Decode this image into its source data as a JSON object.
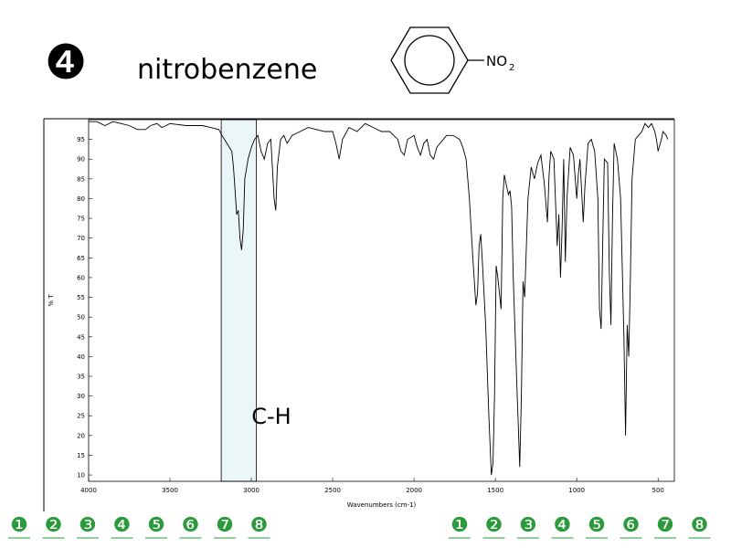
{
  "slide_number": "❹",
  "title": "nitrobenzene",
  "formula": {
    "text": "NO",
    "subscript": "2"
  },
  "chart_data": {
    "type": "line",
    "y_label": "% T",
    "x_label": "Wavenumbers (cm-1)",
    "xlim": [
      4000,
      400
    ],
    "ylim": [
      8.4,
      100
    ],
    "xticks": [
      4000,
      3500,
      3000,
      2500,
      2000,
      1500,
      1000,
      500
    ],
    "yticks": [
      10,
      15,
      20,
      25,
      30,
      35,
      40,
      45,
      50,
      55,
      60,
      65,
      70,
      75,
      80,
      85,
      90,
      95
    ],
    "color": "#000000",
    "highlight": {
      "xrange": [
        3185,
        2970
      ],
      "label": "C-H",
      "color": "#eaf6f8"
    },
    "x": [
      4000,
      3950,
      3900,
      3850,
      3800,
      3750,
      3700,
      3650,
      3620,
      3580,
      3550,
      3500,
      3400,
      3300,
      3250,
      3200,
      3180,
      3150,
      3120,
      3110,
      3100,
      3090,
      3080,
      3070,
      3060,
      3050,
      3040,
      3020,
      3000,
      2980,
      2960,
      2940,
      2920,
      2900,
      2880,
      2860,
      2850,
      2840,
      2820,
      2800,
      2780,
      2750,
      2700,
      2650,
      2600,
      2550,
      2500,
      2480,
      2460,
      2440,
      2400,
      2350,
      2300,
      2250,
      2200,
      2150,
      2100,
      2080,
      2060,
      2040,
      2000,
      1980,
      1960,
      1940,
      1920,
      1900,
      1880,
      1860,
      1840,
      1820,
      1800,
      1760,
      1720,
      1700,
      1680,
      1660,
      1640,
      1620,
      1610,
      1600,
      1590,
      1580,
      1560,
      1540,
      1525,
      1515,
      1505,
      1495,
      1485,
      1475,
      1465,
      1455,
      1445,
      1435,
      1420,
      1410,
      1400,
      1390,
      1370,
      1350,
      1340,
      1330,
      1320,
      1300,
      1280,
      1260,
      1240,
      1220,
      1200,
      1180,
      1170,
      1160,
      1140,
      1120,
      1110,
      1100,
      1090,
      1080,
      1070,
      1060,
      1040,
      1020,
      1000,
      990,
      980,
      960,
      950,
      930,
      910,
      890,
      870,
      860,
      850,
      840,
      830,
      810,
      800,
      790,
      780,
      770,
      750,
      730,
      710,
      700,
      690,
      680,
      670,
      660,
      640,
      620,
      600,
      580,
      560,
      540,
      520,
      510,
      500,
      480,
      470,
      450,
      440
    ],
    "values": [
      99.5,
      99.5,
      98.5,
      99.5,
      99,
      98.5,
      97.5,
      97.5,
      98.5,
      99,
      98,
      99,
      98.5,
      98.5,
      98,
      97.5,
      96,
      94,
      92,
      88,
      82,
      76,
      77,
      70,
      67,
      72,
      85,
      90,
      93,
      95,
      96,
      92,
      90,
      94,
      95,
      80,
      77,
      88,
      95,
      96,
      94,
      96,
      97,
      98,
      97.5,
      97,
      97,
      94,
      90,
      95,
      98,
      97,
      99,
      98,
      97,
      97,
      95,
      92,
      91,
      95,
      96,
      93,
      91,
      94,
      95,
      91,
      90,
      93,
      94,
      95,
      96,
      96,
      95,
      93,
      90,
      80,
      66,
      53,
      56,
      68,
      71,
      64,
      48,
      25,
      10,
      13,
      30,
      63,
      60,
      56,
      52,
      80,
      86,
      84,
      81,
      82,
      78,
      60,
      35,
      12,
      30,
      59,
      55,
      80,
      88,
      85,
      89,
      91,
      84,
      74,
      86,
      92,
      90,
      68,
      76,
      60,
      72,
      90,
      64,
      80,
      93,
      91,
      80,
      86,
      90,
      74,
      83,
      94,
      95,
      92,
      80,
      52,
      47,
      70,
      90,
      89,
      62,
      48,
      75,
      94,
      90,
      80,
      45,
      20,
      48,
      40,
      60,
      85,
      95,
      96,
      97,
      99,
      98,
      99,
      97,
      95,
      92,
      95,
      97,
      96,
      95
    ]
  },
  "nav_left": [
    "❶",
    "❷",
    "❸",
    "❹",
    "❺",
    "❻",
    "❼",
    "❽"
  ],
  "nav_right": [
    "❶",
    "❷",
    "❸",
    "❹",
    "❺",
    "❻",
    "❼",
    "❽"
  ]
}
